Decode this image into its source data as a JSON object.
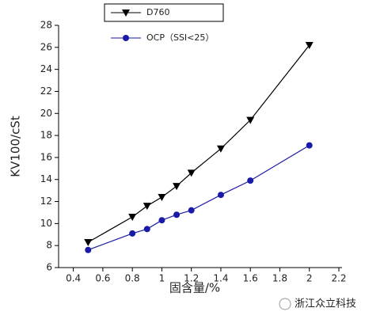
{
  "chart_data": {
    "type": "line",
    "xlabel": "固含量/%",
    "ylabel": "KV100/cSt",
    "xlim": [
      0.3,
      2.2
    ],
    "xticks": [
      0.4,
      0.6,
      0.8,
      1.0,
      1.2,
      1.4,
      1.6,
      1.8,
      2.0,
      2.2
    ],
    "ylim": [
      6,
      28
    ],
    "yticks": [
      6,
      8,
      10,
      12,
      14,
      16,
      18,
      20,
      22,
      24,
      26,
      28
    ],
    "series": [
      {
        "name": "D760",
        "color": "#000000",
        "marker": "triangle-down",
        "x": [
          0.5,
          0.8,
          0.9,
          1.0,
          1.1,
          1.2,
          1.4,
          1.6,
          2.0
        ],
        "values": [
          8.3,
          10.6,
          11.6,
          12.4,
          13.4,
          14.6,
          16.8,
          19.4,
          26.2
        ]
      },
      {
        "name": "OCP（SSI<25）",
        "color": "#1a1aa8",
        "marker": "circle",
        "x": [
          0.5,
          0.8,
          0.9,
          1.0,
          1.1,
          1.2,
          1.4,
          1.6,
          2.0
        ],
        "values": [
          7.6,
          9.1,
          9.5,
          10.3,
          10.8,
          11.2,
          12.6,
          13.9,
          17.1
        ]
      }
    ],
    "watermark": "浙江众立科技"
  }
}
